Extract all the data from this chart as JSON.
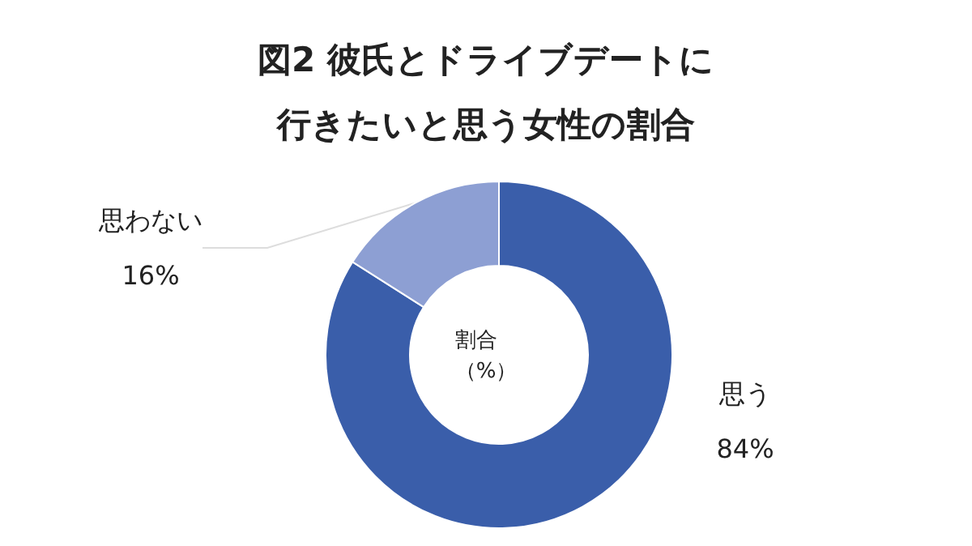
{
  "chart_data": {
    "type": "donut",
    "title": "図2 彼氏とドライブデートに行きたいと思う女性の割合",
    "categories": [
      "思う",
      "思わない"
    ],
    "values": [
      84,
      16
    ],
    "value_labels": [
      "84%",
      "16%"
    ],
    "colors": [
      "#3a5eaa",
      "#8d9fd3"
    ],
    "annotations": [
      "割合（%）"
    ],
    "legend": false
  }
}
